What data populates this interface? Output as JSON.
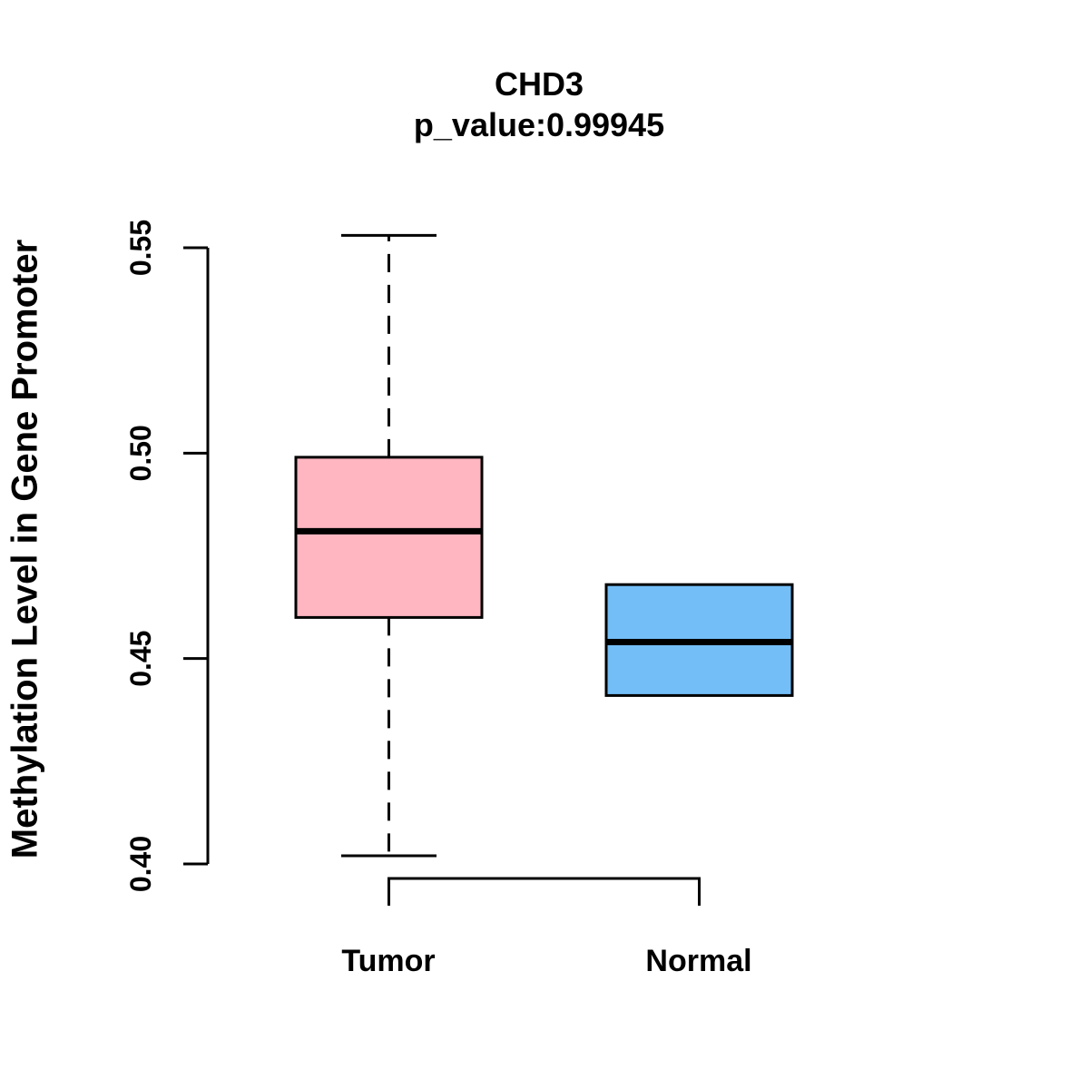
{
  "figure": {
    "title": "CHD3",
    "subtitle": "p_value:0.99945",
    "ylabel": "Methylation Level in Gene Promoter",
    "background_color": "#FFFFFF",
    "axis_color": "#000000",
    "text_color": "#000000"
  },
  "chart_data": {
    "type": "box",
    "title": "CHD3",
    "subtitle": "p_value:0.99945",
    "xlabel": "",
    "ylabel": "Methylation Level in Gene Promoter",
    "ylim": [
      0.4,
      0.55
    ],
    "yticks": [
      "0.40",
      "0.45",
      "0.50",
      "0.55"
    ],
    "grid": false,
    "legend": "none",
    "categories": [
      "Tumor",
      "Normal"
    ],
    "series": [
      {
        "name": "Tumor",
        "fill": "#FFB6C1",
        "stroke": "#000000",
        "stats": {
          "whisker_low": 0.402,
          "q1": 0.46,
          "median": 0.481,
          "q3": 0.499,
          "whisker_high": 0.553
        }
      },
      {
        "name": "Normal",
        "fill": "#73BEF7",
        "stroke": "#000000",
        "stats": {
          "whisker_low": 0.441,
          "q1": 0.441,
          "median": 0.454,
          "q3": 0.468,
          "whisker_high": 0.468
        }
      }
    ]
  }
}
